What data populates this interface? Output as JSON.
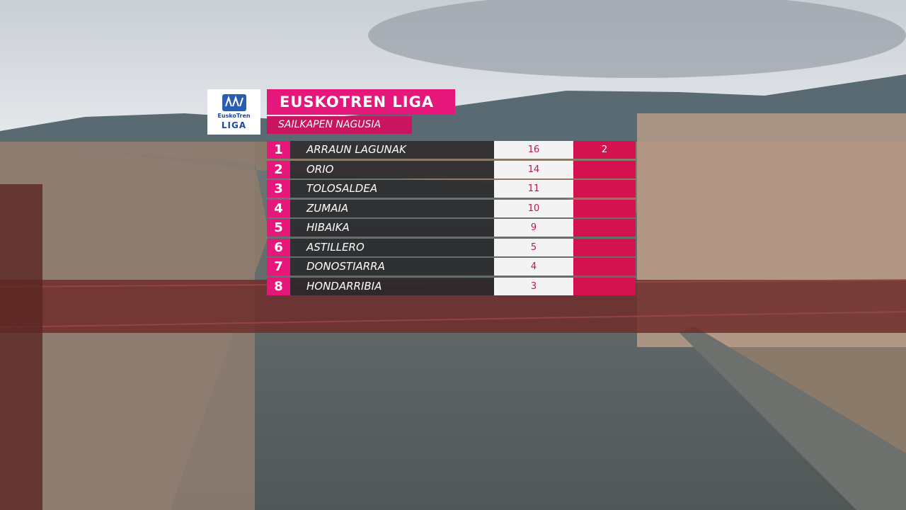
{
  "logo": {
    "line1": "EuskoTren",
    "line2": "LIGA"
  },
  "header": {
    "title": "EUSKOTREN LIGA",
    "subtitle": "SAILKAPEN NAGUSIA"
  },
  "table": {
    "rows": [
      {
        "rank": 1,
        "name": "ARRAUN LAGUNAK",
        "points": 16,
        "gap": 2
      },
      {
        "rank": 2,
        "name": "ORIO",
        "points": 14
      },
      {
        "rank": 3,
        "name": "TOLOSALDEA",
        "points": 11
      },
      {
        "rank": 4,
        "name": "ZUMAIA",
        "points": 10
      },
      {
        "rank": 5,
        "name": "HIBAIKA",
        "points": 9
      },
      {
        "rank": 6,
        "name": "ASTILLERO",
        "points": 5
      },
      {
        "rank": 7,
        "name": "DONOSTIARRA",
        "points": 4
      },
      {
        "rank": 8,
        "name": "HONDARRIBIA",
        "points": 3
      }
    ]
  }
}
